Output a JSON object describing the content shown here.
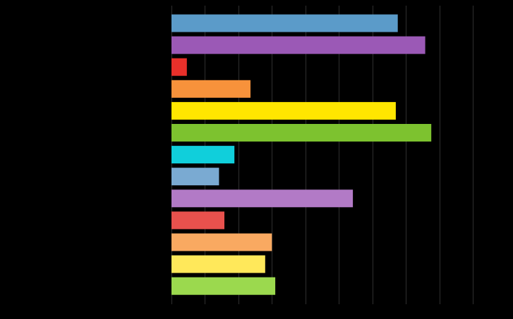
{
  "chart_data": {
    "type": "bar",
    "orientation": "horizontal",
    "title": "",
    "xlabel": "",
    "ylabel": "",
    "grid": true,
    "legend": "none",
    "categories": [
      "",
      "",
      "",
      "",
      "",
      "",
      "",
      "",
      "",
      "",
      "",
      "",
      ""
    ],
    "values": [
      338,
      379,
      23,
      118,
      335,
      388,
      94,
      71,
      271,
      79,
      150,
      140,
      155
    ],
    "colors": [
      "#5b9bc9",
      "#9b59b6",
      "#e8302a",
      "#f7923b",
      "#ffe600",
      "#7dc22f",
      "#10cfdb",
      "#7aaad2",
      "#b27ac6",
      "#e8514d",
      "#f9a961",
      "#ffe85a",
      "#9bd94e"
    ],
    "xlim": [
      0,
      450
    ],
    "xticks": [
      0,
      50,
      100,
      150,
      200,
      250,
      300,
      350,
      400,
      450
    ]
  }
}
